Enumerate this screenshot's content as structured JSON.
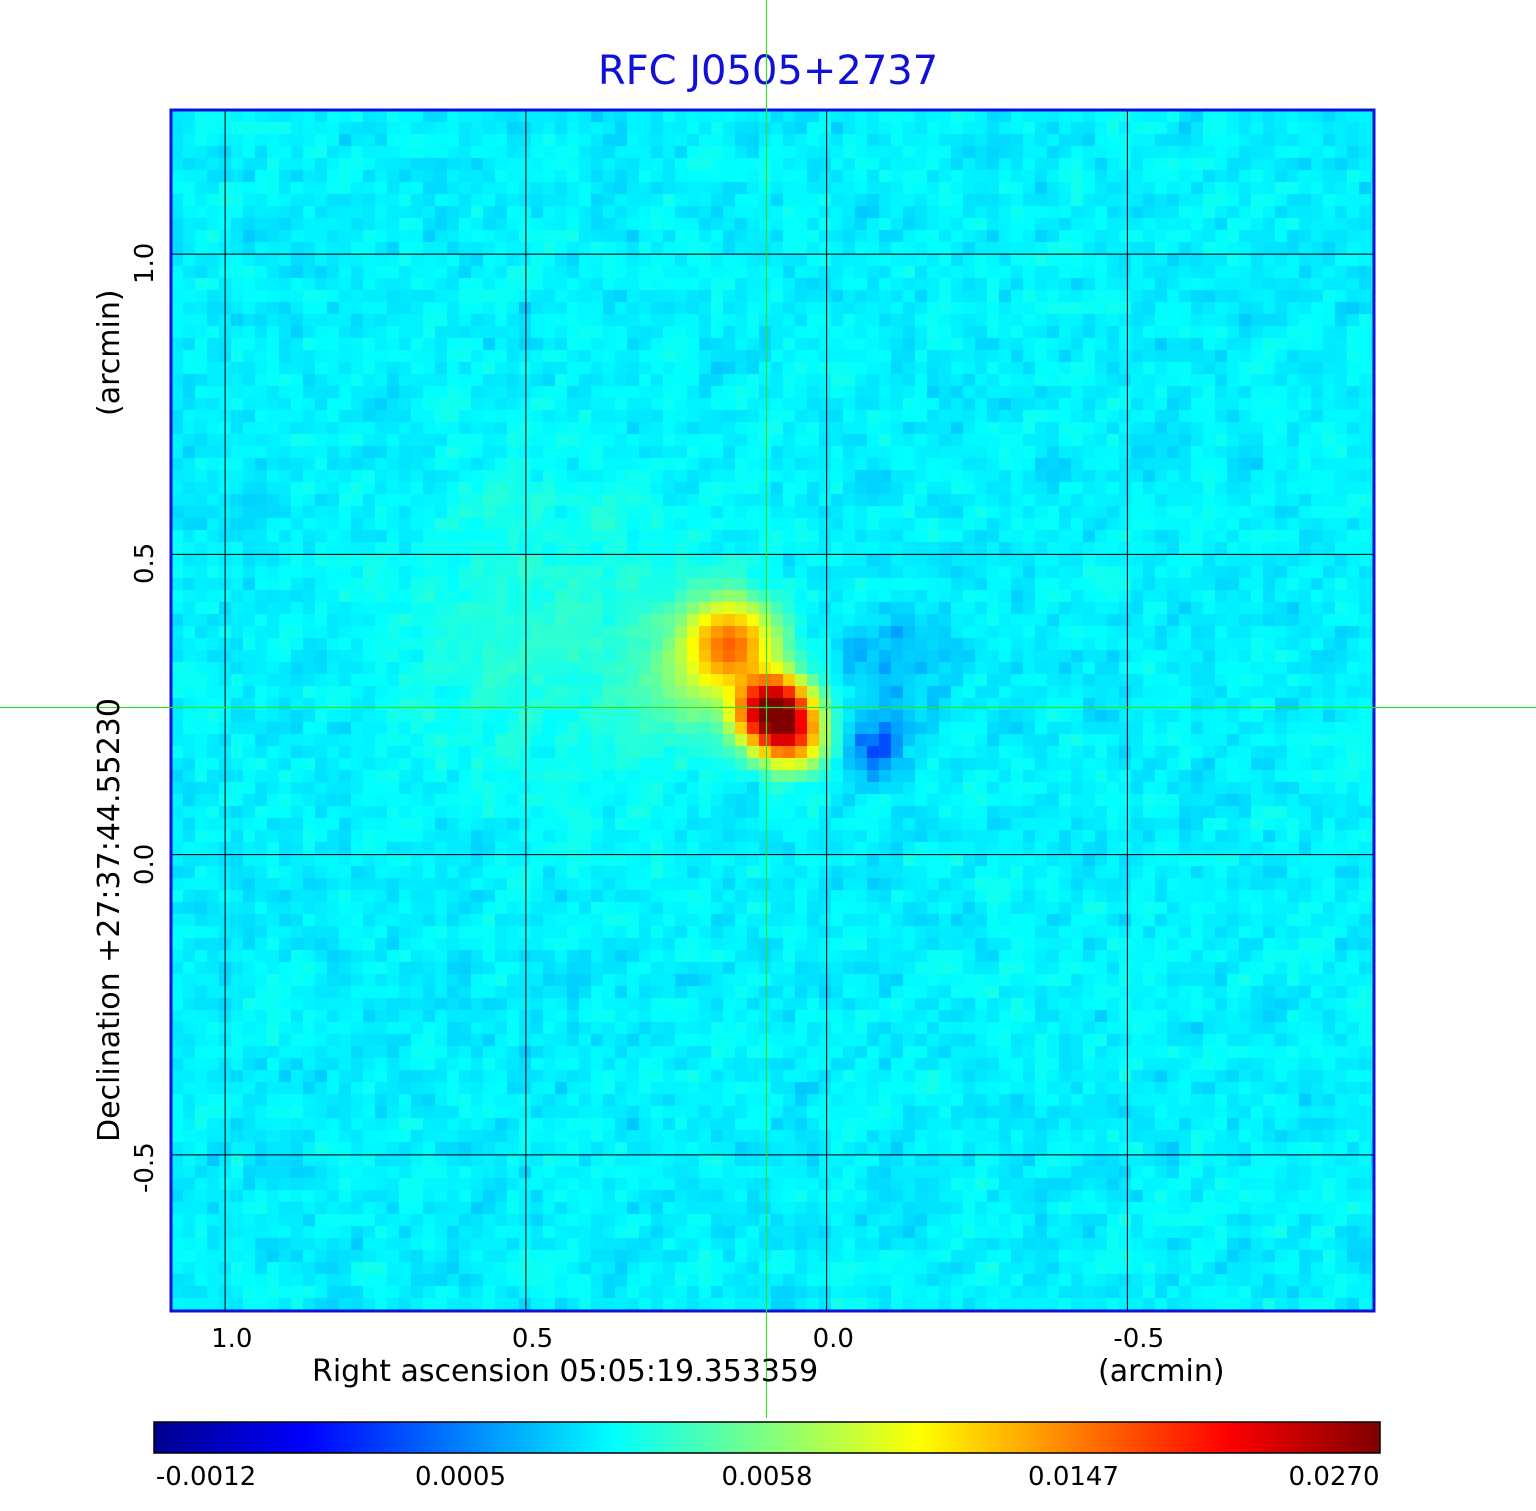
{
  "chart_data": {
    "type": "heatmap",
    "title": "RFC J0505+2737",
    "xlabel": "Right ascension  05:05:19.353359",
    "xunit": "(arcmin)",
    "ylabel": "Declination  +27:37:44.55230",
    "yunit": "(arcmin)",
    "x_axis_reversed": true,
    "xlim": [
      1.09,
      -0.91
    ],
    "ylim": [
      -0.76,
      1.24
    ],
    "x_ticks": [
      1.0,
      0.5,
      0.0,
      -0.5
    ],
    "x_tick_labels": [
      "1.0",
      "0.5",
      "0.0",
      "-0.5"
    ],
    "y_ticks": [
      1.0,
      0.5,
      0.0,
      -0.5
    ],
    "y_tick_labels": [
      "1.0",
      "0.5",
      "0.0",
      "-0.5"
    ],
    "grid": true,
    "crosshair": {
      "x": 0.1,
      "y": 0.245,
      "color": "#33dd33"
    },
    "colormap": "jet",
    "colorbar": {
      "placement": "bottom",
      "min": -0.0012,
      "max": 0.027,
      "tick_labels": [
        "-0.0012",
        "0.0005",
        "0.0058",
        "0.0147",
        "0.0270"
      ]
    },
    "background_level": 0.0003,
    "sources": [
      {
        "x": 0.09,
        "y": 0.24,
        "peak": 0.027,
        "sigma": 0.035
      },
      {
        "x": 0.06,
        "y": 0.2,
        "peak": 0.013,
        "sigma": 0.035
      },
      {
        "x": 0.16,
        "y": 0.35,
        "peak": 0.011,
        "sigma": 0.045
      },
      {
        "x": 0.2,
        "y": 0.3,
        "peak": 0.0025,
        "sigma": 0.07
      },
      {
        "x": 0.45,
        "y": 0.38,
        "peak": 0.0008,
        "sigma": 0.18
      },
      {
        "x": -0.08,
        "y": 0.18,
        "peak": -0.0012,
        "sigma": 0.04
      },
      {
        "x": -0.12,
        "y": 0.33,
        "peak": -0.0008,
        "sigma": 0.06
      }
    ]
  }
}
